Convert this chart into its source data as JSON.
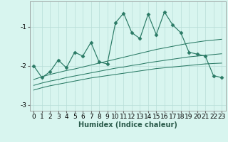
{
  "xlabel": "Humidex (Indice chaleur)",
  "background_color": "#d8f5ef",
  "grid_color": "#b8ddd8",
  "line_color": "#2a7a65",
  "x": [
    0,
    1,
    2,
    3,
    4,
    5,
    6,
    7,
    8,
    9,
    10,
    11,
    12,
    13,
    14,
    15,
    16,
    17,
    18,
    19,
    20,
    21,
    22,
    23
  ],
  "y_volatile": [
    -2.0,
    -2.3,
    -2.15,
    -1.85,
    -2.05,
    -1.65,
    -1.75,
    -1.4,
    -1.9,
    -1.95,
    -0.9,
    -0.65,
    -1.15,
    -1.3,
    -0.68,
    -1.2,
    -0.62,
    -0.95,
    -1.15,
    -1.65,
    -1.7,
    -1.75,
    -2.25,
    -2.3
  ],
  "y_smooth1": [
    -2.35,
    -2.28,
    -2.22,
    -2.17,
    -2.12,
    -2.08,
    -2.03,
    -1.98,
    -1.93,
    -1.88,
    -1.83,
    -1.78,
    -1.73,
    -1.68,
    -1.63,
    -1.58,
    -1.54,
    -1.5,
    -1.46,
    -1.42,
    -1.39,
    -1.36,
    -1.34,
    -1.32
  ],
  "y_smooth2": [
    -2.5,
    -2.44,
    -2.39,
    -2.35,
    -2.3,
    -2.26,
    -2.22,
    -2.18,
    -2.14,
    -2.1,
    -2.06,
    -2.03,
    -1.99,
    -1.96,
    -1.92,
    -1.89,
    -1.86,
    -1.83,
    -1.8,
    -1.77,
    -1.75,
    -1.73,
    -1.71,
    -1.69
  ],
  "y_smooth3": [
    -2.62,
    -2.56,
    -2.51,
    -2.47,
    -2.43,
    -2.39,
    -2.35,
    -2.31,
    -2.28,
    -2.25,
    -2.22,
    -2.19,
    -2.16,
    -2.13,
    -2.1,
    -2.07,
    -2.05,
    -2.03,
    -2.01,
    -1.99,
    -1.97,
    -1.95,
    -1.94,
    -1.93
  ],
  "ylim": [
    -3.15,
    -0.35
  ],
  "xlim": [
    -0.5,
    23.5
  ],
  "yticks": [
    -3,
    -2,
    -1
  ],
  "xticks": [
    0,
    1,
    2,
    3,
    4,
    5,
    6,
    7,
    8,
    9,
    10,
    11,
    12,
    13,
    14,
    15,
    16,
    17,
    18,
    19,
    20,
    21,
    22,
    23
  ],
  "axis_fontsize": 7,
  "tick_fontsize": 6.5
}
